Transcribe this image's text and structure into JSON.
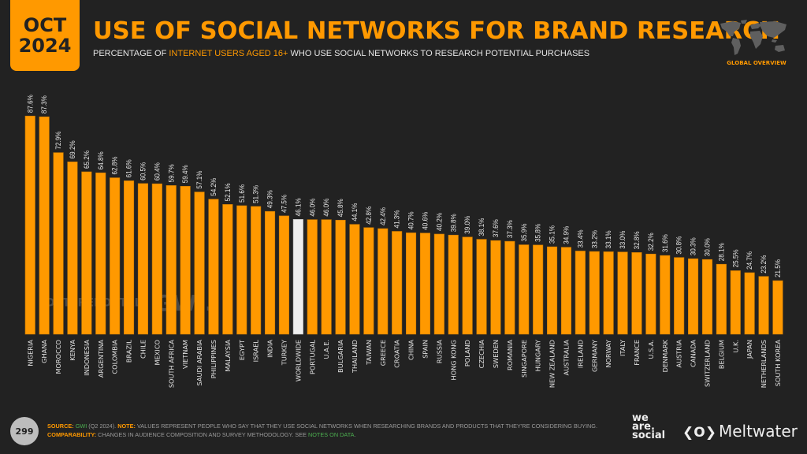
{
  "header": {
    "date_month": "OCT",
    "date_year": "2024",
    "title": "USE OF SOCIAL NETWORKS FOR BRAND RESEARCH",
    "subtitle_pre": "PERCENTAGE OF ",
    "subtitle_highlight": "INTERNET USERS AGED 16+",
    "subtitle_post": " WHO USE SOCIAL NETWORKS TO RESEARCH POTENTIAL PURCHASES",
    "region_label": "GLOBAL OVERVIEW",
    "map_icon": "world-map-icon"
  },
  "colors": {
    "accent": "#ff9900",
    "highlight_bar": "#eeeeee",
    "background": "#222222"
  },
  "watermark": {
    "datareportal": "DATAREPORTAL",
    "gwi": "GWI."
  },
  "chart_data": {
    "type": "bar",
    "title": "USE OF SOCIAL NETWORKS FOR BRAND RESEARCH",
    "xlabel": "",
    "ylabel": "",
    "ylim": [
      0,
      100
    ],
    "grid": false,
    "value_suffix": "%",
    "highlight_category": "WORLDWIDE",
    "categories": [
      "NIGERIA",
      "GHANA",
      "MOROCCO",
      "KENYA",
      "INDONESIA",
      "ARGENTINA",
      "COLOMBIA",
      "BRAZIL",
      "CHILE",
      "MEXICO",
      "SOUTH AFRICA",
      "VIETNAM",
      "SAUDI ARABIA",
      "PHILIPPINES",
      "MALAYSIA",
      "EGYPT",
      "ISRAEL",
      "INDIA",
      "TURKEY",
      "WORLDWIDE",
      "PORTUGAL",
      "U.A.E.",
      "BULGARIA",
      "THAILAND",
      "TAIWAN",
      "GREECE",
      "CROATIA",
      "CHINA",
      "SPAIN",
      "RUSSIA",
      "HONG KONG",
      "POLAND",
      "CZECHIA",
      "SWEDEN",
      "ROMANIA",
      "SINGAPORE",
      "HUNGARY",
      "NEW ZEALAND",
      "AUSTRALIA",
      "IRELAND",
      "GERMANY",
      "NORWAY",
      "ITALY",
      "FRANCE",
      "U.S.A.",
      "DENMARK",
      "AUSTRIA",
      "CANADA",
      "SWITZERLAND",
      "BELGIUM",
      "U.K.",
      "JAPAN",
      "NETHERLANDS",
      "SOUTH KOREA"
    ],
    "values": [
      87.6,
      87.3,
      72.9,
      69.2,
      65.2,
      64.8,
      62.8,
      61.6,
      60.5,
      60.4,
      59.7,
      59.4,
      57.1,
      54.2,
      52.1,
      51.6,
      51.3,
      49.3,
      47.5,
      46.1,
      46.0,
      46.0,
      45.8,
      44.1,
      42.8,
      42.4,
      41.3,
      40.7,
      40.6,
      40.2,
      39.8,
      39.0,
      38.1,
      37.6,
      37.3,
      35.9,
      35.8,
      35.1,
      34.9,
      33.4,
      33.2,
      33.1,
      33.0,
      32.8,
      32.2,
      31.6,
      30.8,
      30.3,
      30.0,
      28.1,
      25.5,
      24.7,
      23.2,
      21.5
    ]
  },
  "footer": {
    "page_number": "299",
    "source_label": "SOURCE:",
    "source_name": "GWI",
    "source_detail": " (Q2 2024). ",
    "note_label": "NOTE:",
    "note_text": " VALUES REPRESENT PEOPLE WHO SAY THAT THEY USE SOCIAL NETWORKS WHEN RESEARCHING BRANDS AND PRODUCTS THAT THEY'RE CONSIDERING BUYING.",
    "comparability_label": "COMPARABILITY:",
    "comparability_text": " CHANGES IN AUDIENCE COMPOSITION AND SURVEY METHODOLOGY. SEE ",
    "notes_link": "NOTES ON DATA",
    "notes_link_end": ".",
    "brand1_line1": "we",
    "brand1_line2": "are.",
    "brand1_line3": "social",
    "brand2_logo": "❮O❯",
    "brand2_name": "Meltwater"
  }
}
